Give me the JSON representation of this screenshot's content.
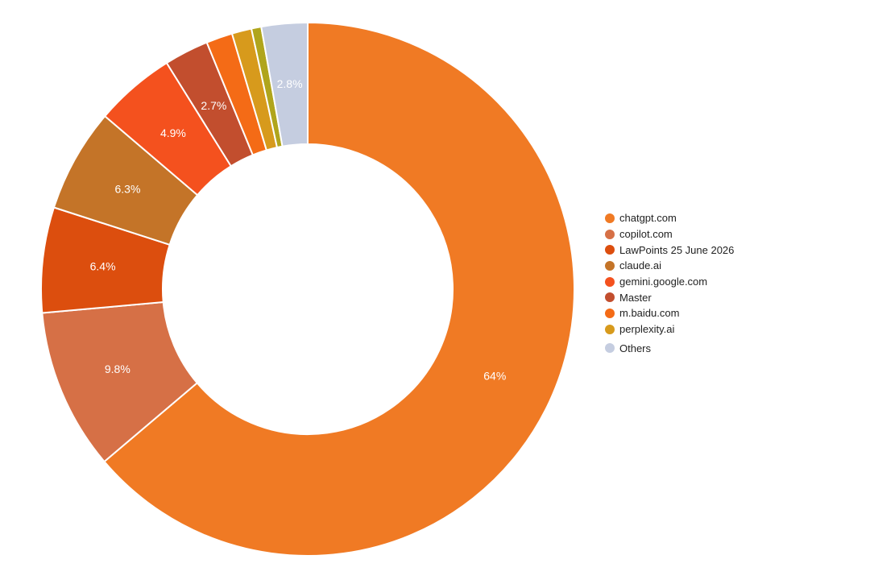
{
  "chart_data": {
    "type": "pie",
    "style": "donut",
    "title": "",
    "slices": [
      {
        "label": "chatgpt.com",
        "value": 64,
        "display": "64%",
        "color": "#F07A24"
      },
      {
        "label": "copilot.com",
        "value": 9.8,
        "display": "9.8%",
        "color": "#D67046"
      },
      {
        "label": "LawPoints 25 June 2026",
        "value": 6.4,
        "display": "6.4%",
        "color": "#DC4E0E"
      },
      {
        "label": "claude.ai",
        "value": 6.3,
        "display": "6.3%",
        "color": "#C47428"
      },
      {
        "label": "gemini.google.com",
        "value": 4.9,
        "display": "4.9%",
        "color": "#F4511E"
      },
      {
        "label": "Master",
        "value": 2.7,
        "display": "2.7%",
        "color": "#C24E2E"
      },
      {
        "label": "m.baidu.com",
        "value": 1.6,
        "display": "",
        "color": "#F46B16"
      },
      {
        "label": "perplexity.ai",
        "value": 1.2,
        "display": "",
        "color": "#D79A1C"
      },
      {
        "label": "",
        "value": 0.6,
        "display": "",
        "color": "#B0A51C"
      },
      {
        "label": "Others",
        "value": 2.8,
        "display": "2.8%",
        "color": "#C5CDE0"
      }
    ],
    "legend_position": "right"
  }
}
